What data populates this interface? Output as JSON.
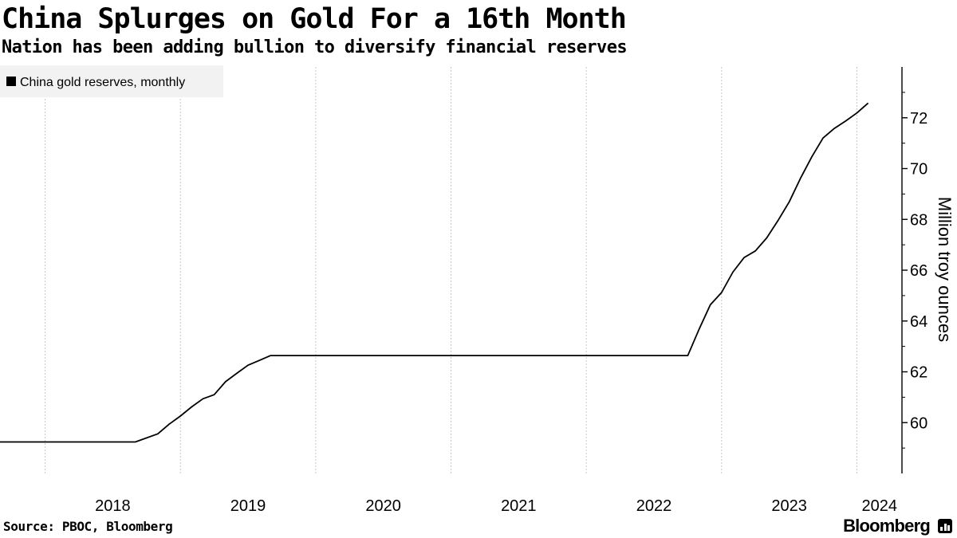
{
  "header": {
    "title": "China Splurges on Gold For a 16th Month",
    "subtitle": "Nation has been adding bullion to diversify financial reserves"
  },
  "footer": {
    "source": "Source: PBOC, Bloomberg",
    "brand": "Bloomberg",
    "brand_icon": "bloomberg-terminal-icon"
  },
  "colors": {
    "line": "#000000",
    "grid": "#c8c8c8",
    "legend_bg": "#f2f2f2",
    "axis": "#000000"
  },
  "chart_data": {
    "type": "line",
    "legend": "China gold reserves, monthly",
    "legend_position": "top-left",
    "ylabel": "Million troy ounces",
    "y_axis_side": "right",
    "ylim": [
      58,
      74
    ],
    "y_ticks": [
      60,
      62,
      64,
      66,
      68,
      70,
      72
    ],
    "x_range": [
      "2017-09",
      "2024-05"
    ],
    "x_ticks": [
      "2018",
      "2019",
      "2020",
      "2021",
      "2022",
      "2023",
      "2024"
    ],
    "grid": "vertical dotted at year starts",
    "series": [
      {
        "name": "China gold reserves, monthly",
        "points": [
          [
            "2017-09",
            59.24
          ],
          [
            "2018-01",
            59.24
          ],
          [
            "2018-06",
            59.24
          ],
          [
            "2018-09",
            59.24
          ],
          [
            "2018-11",
            59.56
          ],
          [
            "2018-12",
            59.94
          ],
          [
            "2019-01",
            60.26
          ],
          [
            "2019-02",
            60.62
          ],
          [
            "2019-03",
            60.94
          ],
          [
            "2019-04",
            61.1
          ],
          [
            "2019-05",
            61.61
          ],
          [
            "2019-06",
            61.94
          ],
          [
            "2019-07",
            62.26
          ],
          [
            "2019-08",
            62.45
          ],
          [
            "2019-09",
            62.64
          ],
          [
            "2020-01",
            62.64
          ],
          [
            "2021-01",
            62.64
          ],
          [
            "2022-01",
            62.64
          ],
          [
            "2022-10",
            62.64
          ],
          [
            "2022-11",
            63.67
          ],
          [
            "2022-12",
            64.64
          ],
          [
            "2023-01",
            65.12
          ],
          [
            "2023-02",
            65.92
          ],
          [
            "2023-03",
            66.5
          ],
          [
            "2023-04",
            66.76
          ],
          [
            "2023-05",
            67.27
          ],
          [
            "2023-06",
            67.95
          ],
          [
            "2023-07",
            68.69
          ],
          [
            "2023-08",
            69.62
          ],
          [
            "2023-09",
            70.46
          ],
          [
            "2023-10",
            71.2
          ],
          [
            "2023-11",
            71.58
          ],
          [
            "2023-12",
            71.87
          ],
          [
            "2024-01",
            72.19
          ],
          [
            "2024-02",
            72.58
          ]
        ]
      }
    ]
  }
}
